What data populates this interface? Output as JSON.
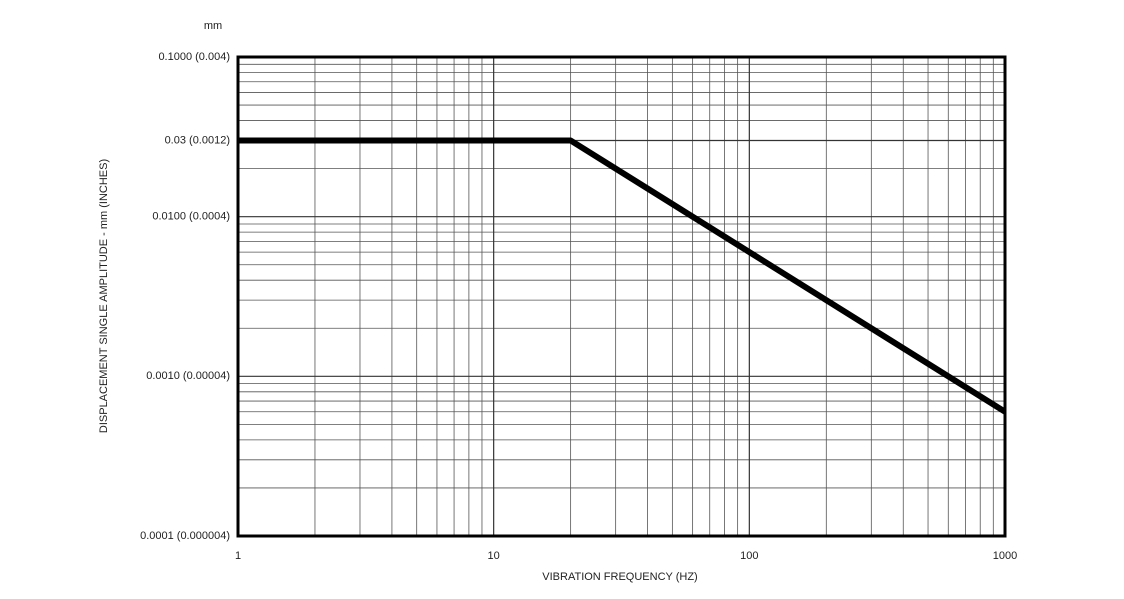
{
  "chart_data": {
    "type": "line",
    "y_unit_label": "mm",
    "ylabel": "DISPLACEMENT SINGLE AMPLITUDE - mm (INCHES)",
    "xlabel": "VIBRATION FREQUENCY (HZ)",
    "x": [
      1,
      20,
      1000
    ],
    "values": [
      0.03,
      0.03,
      0.0006
    ],
    "color": "#000000",
    "xlog": true,
    "ylog": true,
    "grid": true,
    "minor_grid": true,
    "xlim": [
      1,
      1000
    ],
    "ylim": [
      0.0001,
      0.1
    ],
    "xticks": [
      1,
      10,
      100,
      1000
    ],
    "yticks": [
      {
        "value": 0.1,
        "label": "0.1000 (0.004)"
      },
      {
        "value": 0.03,
        "label": "0.03 (0.0012)"
      },
      {
        "value": 0.01,
        "label": "0.0100 (0.0004)"
      },
      {
        "value": 0.001,
        "label": "0.0010 (0.00004)"
      },
      {
        "value": 0.0001,
        "label": "0.0001 (0.000004)"
      }
    ]
  }
}
